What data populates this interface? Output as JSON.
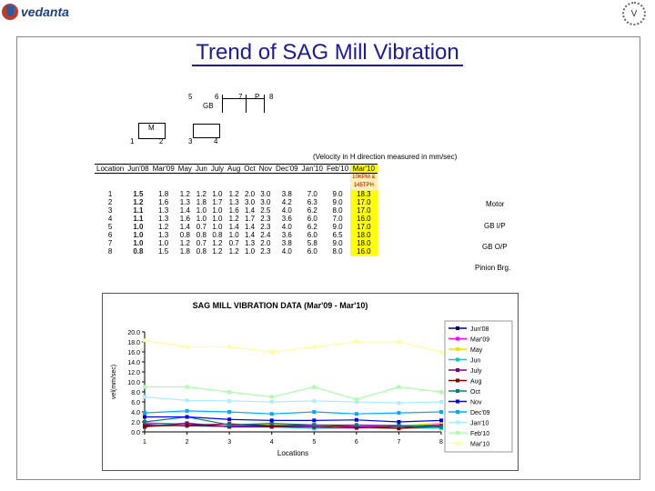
{
  "header": {
    "logo_text": "vedanta",
    "seal_text": "V"
  },
  "slide_title": "Trend of SAG Mill Vibration",
  "schematic": {
    "top_numbers": [
      "5",
      "6",
      "7",
      "P",
      "8"
    ],
    "gb_label": "GB",
    "motor_label": "M",
    "bottom_numbers": [
      "1",
      "2",
      "3",
      "4"
    ]
  },
  "caption": "(Velocity in H direction measured in mm/sec)",
  "table": {
    "headers": [
      "Location",
      "Jun'08",
      "Mar'09",
      "May",
      "Jun",
      "July",
      "Aug",
      "Oct",
      "Nov",
      "Dec'09",
      "Jan'10",
      "Feb'10",
      "Mar'10"
    ],
    "mar10_subnote": [
      "10KPM &",
      "145TPH"
    ],
    "rows": [
      [
        "1",
        "1.5",
        "1.8",
        "1.2",
        "1.2",
        "1.0",
        "1.2",
        "2.0",
        "3.0",
        "3.8",
        "7.0",
        "9.0",
        "18.3"
      ],
      [
        "2",
        "1.2",
        "1.6",
        "1.3",
        "1.8",
        "1.7",
        "1.3",
        "3.0",
        "3.0",
        "4.2",
        "6.3",
        "9.0",
        "17.0"
      ],
      [
        "3",
        "1.1",
        "1.3",
        "1.4",
        "1.0",
        "1.0",
        "1.6",
        "1.4",
        "2.5",
        "4.0",
        "6.2",
        "8.0",
        "17.0"
      ],
      [
        "4",
        "1.1",
        "1.3",
        "1.6",
        "1.0",
        "1.0",
        "1.2",
        "1.7",
        "2.3",
        "3.6",
        "6.0",
        "7.0",
        "16.0"
      ],
      [
        "5",
        "1.0",
        "1.2",
        "1.4",
        "0.7",
        "1.0",
        "1.4",
        "1.4",
        "2.3",
        "4.0",
        "6.2",
        "9.0",
        "17.0"
      ],
      [
        "6",
        "1.0",
        "1.3",
        "0.8",
        "0.8",
        "0.8",
        "1.0",
        "1.4",
        "2.4",
        "3.6",
        "6.0",
        "6.5",
        "18.0"
      ],
      [
        "7",
        "1.0",
        "1.0",
        "1.2",
        "0.7",
        "1.2",
        "0.7",
        "1.3",
        "2.0",
        "3.8",
        "5.8",
        "9.0",
        "18.0"
      ],
      [
        "8",
        "0.8",
        "1.5",
        "1.8",
        "0.8",
        "1.2",
        "1.2",
        "1.0",
        "2.3",
        "4.0",
        "6.0",
        "8.0",
        "16.0"
      ]
    ],
    "side_labels": [
      "Motor",
      "GB I/P",
      "GB O/P",
      "Pinion Brg."
    ]
  },
  "chart_data": {
    "type": "line",
    "title": "SAG MILL VIBRATION DATA (Mar'09 - Mar'10)",
    "xlabel": "Locations",
    "ylabel": "vel(mm/sec)",
    "x": [
      1,
      2,
      3,
      4,
      5,
      6,
      7,
      8
    ],
    "ylim": [
      0,
      20
    ],
    "yticks": [
      "0.0",
      "2.0",
      "4.0",
      "6.0",
      "8.0",
      "10.0",
      "12.0",
      "14.0",
      "16.0",
      "18.0",
      "20.0"
    ],
    "legend_position": "right",
    "series": [
      {
        "name": "Jun'08",
        "color": "#000080",
        "values": [
          1.5,
          1.2,
          1.1,
          1.1,
          1.0,
          1.0,
          1.0,
          0.8
        ]
      },
      {
        "name": "Mar'09",
        "color": "#ff00ff",
        "values": [
          1.8,
          1.6,
          1.3,
          1.3,
          1.2,
          1.3,
          1.0,
          1.5
        ]
      },
      {
        "name": "May",
        "color": "#e6e600",
        "values": [
          1.2,
          1.3,
          1.4,
          1.6,
          1.4,
          0.8,
          1.2,
          1.8
        ]
      },
      {
        "name": "Jun",
        "color": "#00cccc",
        "values": [
          1.2,
          1.8,
          1.0,
          1.0,
          0.7,
          0.8,
          0.7,
          0.8
        ]
      },
      {
        "name": "July",
        "color": "#800080",
        "values": [
          1.0,
          1.7,
          1.0,
          1.0,
          1.0,
          0.8,
          1.2,
          1.2
        ]
      },
      {
        "name": "Aug",
        "color": "#800000",
        "values": [
          1.2,
          1.3,
          1.6,
          1.2,
          1.4,
          1.0,
          0.7,
          1.2
        ]
      },
      {
        "name": "Oct",
        "color": "#008080",
        "values": [
          2.0,
          3.0,
          1.4,
          1.7,
          1.4,
          1.4,
          1.3,
          1.0
        ]
      },
      {
        "name": "Nov",
        "color": "#0000ff",
        "values": [
          3.0,
          3.0,
          2.5,
          2.3,
          2.3,
          2.4,
          2.0,
          2.3
        ]
      },
      {
        "name": "Dec'09",
        "color": "#00aaff",
        "values": [
          3.8,
          4.2,
          4.0,
          3.6,
          4.0,
          3.6,
          3.8,
          4.0
        ]
      },
      {
        "name": "Jan'10",
        "color": "#aaeeff",
        "values": [
          7.0,
          6.3,
          6.2,
          6.0,
          6.2,
          6.0,
          5.8,
          6.0
        ]
      },
      {
        "name": "Feb'10",
        "color": "#aaffaa",
        "values": [
          9.0,
          9.0,
          8.0,
          7.0,
          9.0,
          6.5,
          9.0,
          8.0
        ]
      },
      {
        "name": "Mar'10",
        "color": "#ffff99",
        "values": [
          18.3,
          17.0,
          17.0,
          16.0,
          17.0,
          18.0,
          18.0,
          16.0
        ]
      }
    ]
  }
}
